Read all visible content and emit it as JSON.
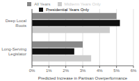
{
  "chart_data": {
    "type": "bar",
    "orientation": "horizontal",
    "categories": [
      "Long-Serving\nLegislator",
      "Deep Local\nRoots"
    ],
    "series": [
      {
        "name": "All Years",
        "color": "#888888",
        "values": [
          3.0,
          5.0
        ]
      },
      {
        "name": "Presidential Years Only",
        "color": "#111111",
        "values": [
          2.5,
          5.2
        ]
      },
      {
        "name": "Midterm Years Only",
        "color": "#cccccc",
        "values": [
          3.5,
          4.6
        ]
      }
    ],
    "xlabel": "Predicted Increase in Partisan Overperformance",
    "xlim": [
      0,
      6
    ],
    "xticks": [
      {
        "value": 0,
        "label": "0%"
      },
      {
        "value": 1,
        "label": "1%"
      },
      {
        "value": 2,
        "label": "2%"
      },
      {
        "value": 3,
        "label": "3%"
      },
      {
        "value": 4,
        "label": "4%"
      },
      {
        "value": 5,
        "label": "5%"
      },
      {
        "value": 6,
        "label": "6%"
      }
    ],
    "grid": true,
    "legend": "top"
  }
}
